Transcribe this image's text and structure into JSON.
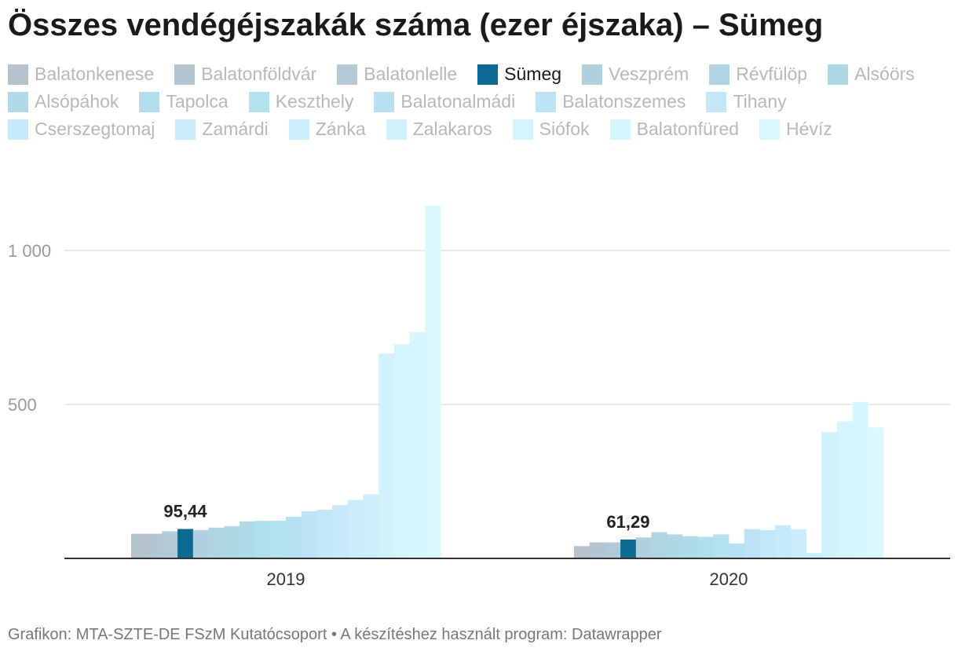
{
  "title": "Összes vendégéjszakák száma (ezer éjszaka) – Sümeg",
  "footer": {
    "source": "Grafikon: MTA-SZTE-DE FSzM Kutatócsoport",
    "separator": "•",
    "tool": "A készítéshez használt program: Datawrapper"
  },
  "legend": [
    {
      "label": "Balatonkenese",
      "color": "#b4c3cc"
    },
    {
      "label": "Balatonföldvár",
      "color": "#b2c6d1"
    },
    {
      "label": "Balatonlelle",
      "color": "#b1cad5"
    },
    {
      "label": "Sümeg",
      "color": "#0b6a94",
      "highlight": true
    },
    {
      "label": "Veszprém",
      "color": "#b0d0dd"
    },
    {
      "label": "Révfülöp",
      "color": "#b0d4e1"
    },
    {
      "label": "Alsóörs",
      "color": "#afd8e5"
    },
    {
      "label": "Alsópáhok",
      "color": "#afdbe8"
    },
    {
      "label": "Tapolca",
      "color": "#b0dfeb"
    },
    {
      "label": "Keszthely",
      "color": "#b1e2ee"
    },
    {
      "label": "Balatonalmádi",
      "color": "#b5e1f2"
    },
    {
      "label": "Balatonszemes",
      "color": "#bde4f6"
    },
    {
      "label": "Tihany",
      "color": "#c2e8f8"
    },
    {
      "label": "Cserszegtomaj",
      "color": "#c6eafa"
    },
    {
      "label": "Zamárdi",
      "color": "#caecfb"
    },
    {
      "label": "Zánka",
      "color": "#cdeefc"
    },
    {
      "label": "Zalakaros",
      "color": "#d0f2fc"
    },
    {
      "label": "Siófok",
      "color": "#d3f5fd"
    },
    {
      "label": "Balatonfüred",
      "color": "#d6f7fd"
    },
    {
      "label": "Hévíz",
      "color": "#d9f9fe"
    }
  ],
  "chart_data": {
    "type": "bar",
    "title": "Összes vendégéjszakák száma (ezer éjszaka) – Sümeg",
    "categories": [
      "2019",
      "2020"
    ],
    "ylim": [
      0,
      1150
    ],
    "yticks": [
      500,
      1000
    ],
    "ytick_labels": [
      "500",
      "1 000"
    ],
    "grid": true,
    "legend_position": "top",
    "series": [
      {
        "name": "Balatonkenese",
        "values": [
          80,
          40
        ]
      },
      {
        "name": "Balatonföldvár",
        "values": [
          80,
          52
        ]
      },
      {
        "name": "Balatonlelle",
        "values": [
          88,
          52
        ]
      },
      {
        "name": "Sümeg",
        "values": [
          95.44,
          61.29
        ],
        "labels": [
          "95,44",
          "61,29"
        ]
      },
      {
        "name": "Veszprém",
        "values": [
          92,
          68
        ]
      },
      {
        "name": "Révfülöp",
        "values": [
          100,
          85
        ]
      },
      {
        "name": "Alsóörs",
        "values": [
          105,
          78
        ]
      },
      {
        "name": "Alsópáhok",
        "values": [
          120,
          72
        ]
      },
      {
        "name": "Tapolca",
        "values": [
          122,
          70
        ]
      },
      {
        "name": "Keszthely",
        "values": [
          122,
          78
        ]
      },
      {
        "name": "Balatonalmádi",
        "values": [
          135,
          48
        ]
      },
      {
        "name": "Balatonszemes",
        "values": [
          153,
          95
        ]
      },
      {
        "name": "Tihany",
        "values": [
          158,
          92
        ]
      },
      {
        "name": "Cserszegtomaj",
        "values": [
          173,
          108
        ]
      },
      {
        "name": "Zamárdi",
        "values": [
          190,
          95
        ]
      },
      {
        "name": "Zánka",
        "values": [
          208,
          18
        ]
      },
      {
        "name": "Zalakaros",
        "values": [
          665,
          410
        ]
      },
      {
        "name": "Siófok",
        "values": [
          695,
          445
        ]
      },
      {
        "name": "Balatonfüred",
        "values": [
          735,
          508
        ]
      },
      {
        "name": "Hévíz",
        "values": [
          1145,
          425
        ]
      }
    ]
  }
}
